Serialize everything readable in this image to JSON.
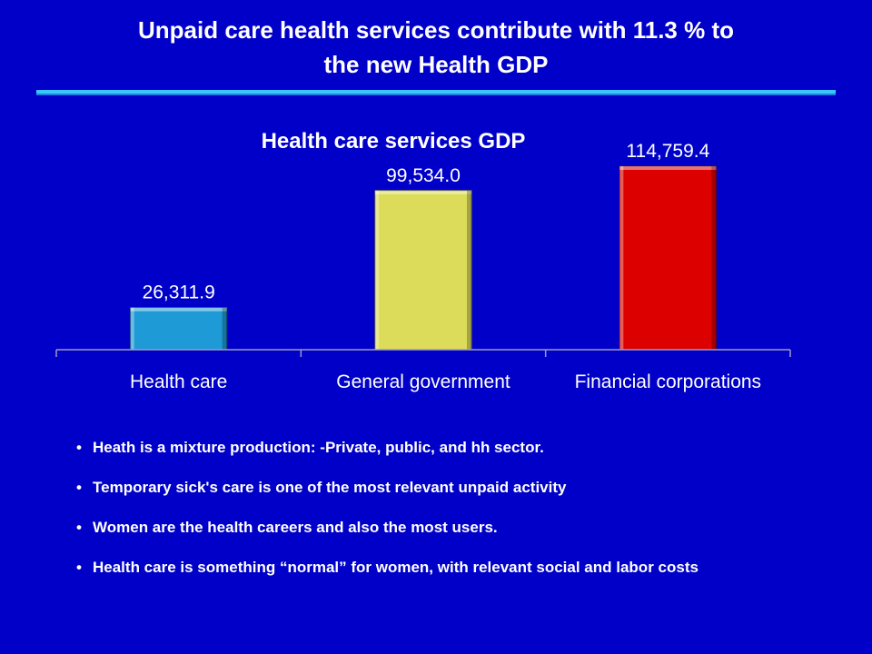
{
  "slide": {
    "title_line1": "Unpaid care health services contribute with 11.3 % to",
    "title_line2": "the new Health GDP"
  },
  "chart_data": {
    "type": "bar",
    "title": "Health care services GDP",
    "categories": [
      "Health care",
      "General government",
      "Financial corporations"
    ],
    "values": [
      26311.9,
      99534.0,
      114759.4
    ],
    "value_labels": [
      "26,311.9",
      "99,534.0",
      "114,759.4"
    ],
    "colors": [
      "#1e9ad6",
      "#dcdc5a",
      "#dd0000"
    ],
    "ylim": [
      0,
      125000
    ],
    "grid": false,
    "legend": "none"
  },
  "bullets": [
    "Heath is a mixture production:  -Private, public, and hh sector.",
    "Temporary sick's care is one of the most relevant unpaid activity",
    "Women are the health careers and also the most users.",
    " Health care is something “normal” for women, with relevant  social and labor costs"
  ],
  "bullet_glyph": "•"
}
